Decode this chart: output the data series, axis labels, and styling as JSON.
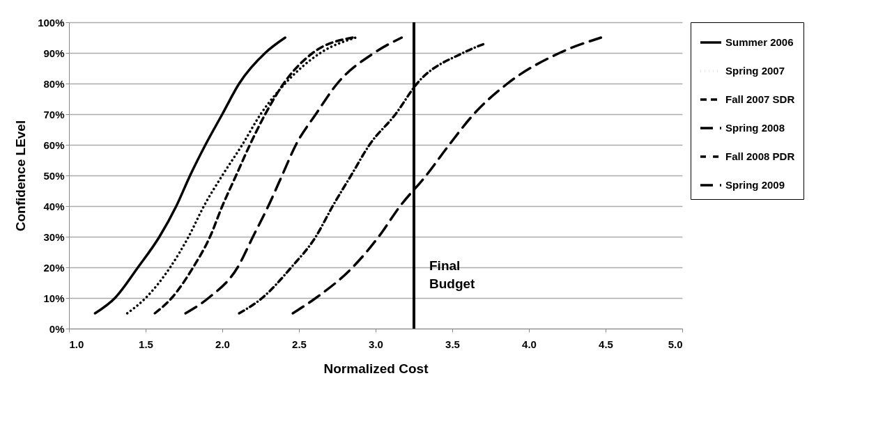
{
  "chart_data": {
    "type": "line",
    "xlabel": "Normalized Cost",
    "ylabel": "Confidence LEvel",
    "xlim": [
      1,
      5
    ],
    "ylim": [
      0,
      100
    ],
    "xticks": [
      {
        "value": 1,
        "label": "1.0"
      },
      {
        "value": 1.5,
        "label": "1.5"
      },
      {
        "value": 2,
        "label": "2.0"
      },
      {
        "value": 2.5,
        "label": "2.5"
      },
      {
        "value": 3,
        "label": "3.0"
      },
      {
        "value": 3.5,
        "label": "3.5"
      },
      {
        "value": 4,
        "label": "4.0"
      },
      {
        "value": 4.5,
        "label": "4.5"
      },
      {
        "value": 5,
        "label": "5.0"
      }
    ],
    "yticks": [
      {
        "value": 0,
        "label": "0%"
      },
      {
        "value": 10,
        "label": "10%"
      },
      {
        "value": 20,
        "label": "20%"
      },
      {
        "value": 30,
        "label": "30%"
      },
      {
        "value": 40,
        "label": "40%"
      },
      {
        "value": 50,
        "label": "50%"
      },
      {
        "value": 60,
        "label": "60%"
      },
      {
        "value": 70,
        "label": "70%"
      },
      {
        "value": 80,
        "label": "80%"
      },
      {
        "value": 90,
        "label": "90%"
      },
      {
        "value": 100,
        "label": "100%"
      }
    ],
    "grid": "y",
    "legend": "right",
    "series": [
      {
        "name": "Summer 2006",
        "color": "#000000",
        "line_style": "solid",
        "x": [
          1.17,
          1.3,
          1.45,
          1.59,
          1.7,
          1.79,
          1.89,
          2.0,
          2.11,
          2.28,
          2.41
        ],
        "values": [
          5,
          10,
          20,
          30,
          40,
          50,
          60,
          70,
          80,
          90,
          95
        ]
      },
      {
        "name": "Spring 2007",
        "color": "#000000",
        "line_style": "dotted",
        "x": [
          1.38,
          1.5,
          1.66,
          1.78,
          1.88,
          2.0,
          2.13,
          2.25,
          2.41,
          2.64,
          2.87
        ],
        "values": [
          5,
          10,
          20,
          30,
          40,
          50,
          60,
          70,
          80,
          90,
          95
        ]
      },
      {
        "name": "Fall 2007 SDR",
        "color": "#000000",
        "line_style": "dashed",
        "x": [
          1.56,
          1.67,
          1.81,
          1.92,
          2.0,
          2.09,
          2.18,
          2.28,
          2.4,
          2.59,
          2.85
        ],
        "values": [
          5,
          10,
          20,
          30,
          40,
          50,
          60,
          70,
          80,
          90,
          95
        ]
      },
      {
        "name": "Spring 2008",
        "color": "#000000",
        "line_style": "longdash",
        "x": [
          1.76,
          1.91,
          2.1,
          2.2,
          2.3,
          2.39,
          2.48,
          2.61,
          2.75,
          2.99,
          3.17
        ],
        "values": [
          5,
          10,
          20,
          30,
          40,
          50,
          60,
          70,
          80,
          90,
          95
        ]
      },
      {
        "name": "Fall 2008 PDR",
        "color": "#000000",
        "line_style": "dashdot",
        "x": [
          2.11,
          2.26,
          2.45,
          2.61,
          2.72,
          2.84,
          2.96,
          3.13,
          3.27,
          3.57,
          3.71
        ],
        "values": [
          5,
          10,
          20,
          30,
          40,
          50,
          60,
          70,
          80,
          90,
          93
        ]
      },
      {
        "name": "Spring 2009",
        "color": "#000000",
        "line_style": "longdash",
        "x": [
          2.46,
          2.61,
          2.85,
          3.02,
          3.16,
          3.33,
          3.48,
          3.64,
          3.86,
          4.2,
          4.47
        ],
        "values": [
          5,
          10,
          20,
          30,
          40,
          50,
          60,
          70,
          80,
          90,
          95
        ]
      }
    ],
    "ref_lines": [
      {
        "axis": "x",
        "value": 3.25,
        "label": "Final Budget",
        "color": "#000000"
      }
    ]
  }
}
